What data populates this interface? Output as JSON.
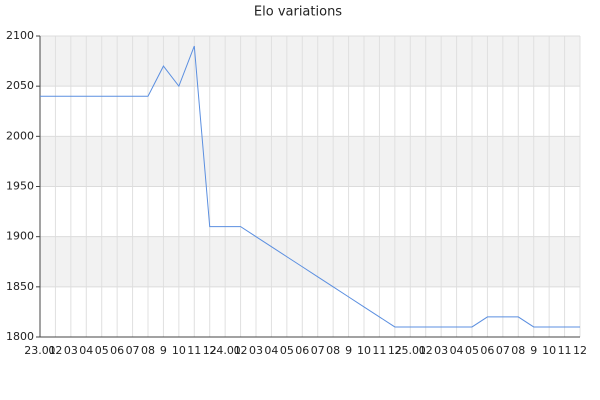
{
  "chart_data": {
    "type": "line",
    "title": "Elo variations",
    "categories": [
      "23.01",
      "02",
      "03",
      "04",
      "05",
      "06",
      "07",
      "08",
      "9",
      "10",
      "11",
      "12",
      "24.01",
      "02",
      "03",
      "04",
      "05",
      "06",
      "07",
      "08",
      "9",
      "10",
      "11",
      "12",
      "25.01",
      "02",
      "03",
      "04",
      "05",
      "06",
      "07",
      "08",
      "9",
      "10",
      "11",
      "12"
    ],
    "series": [
      {
        "color": "#5b8fe0",
        "values": [
          2040,
          2040,
          2040,
          2040,
          2040,
          2040,
          2040,
          2040,
          2070,
          2050,
          2090,
          1910,
          1910,
          1910,
          1900,
          1890,
          1880,
          1870,
          1860,
          1850,
          1840,
          1830,
          1820,
          1810,
          1810,
          1810,
          1810,
          1810,
          1810,
          1820,
          1820,
          1820,
          1810,
          1810,
          1810,
          1810
        ]
      }
    ],
    "ylim": [
      1800,
      2100
    ],
    "yticks": [
      1800,
      1850,
      1900,
      1950,
      2000,
      2050,
      2100
    ],
    "grid": true
  }
}
